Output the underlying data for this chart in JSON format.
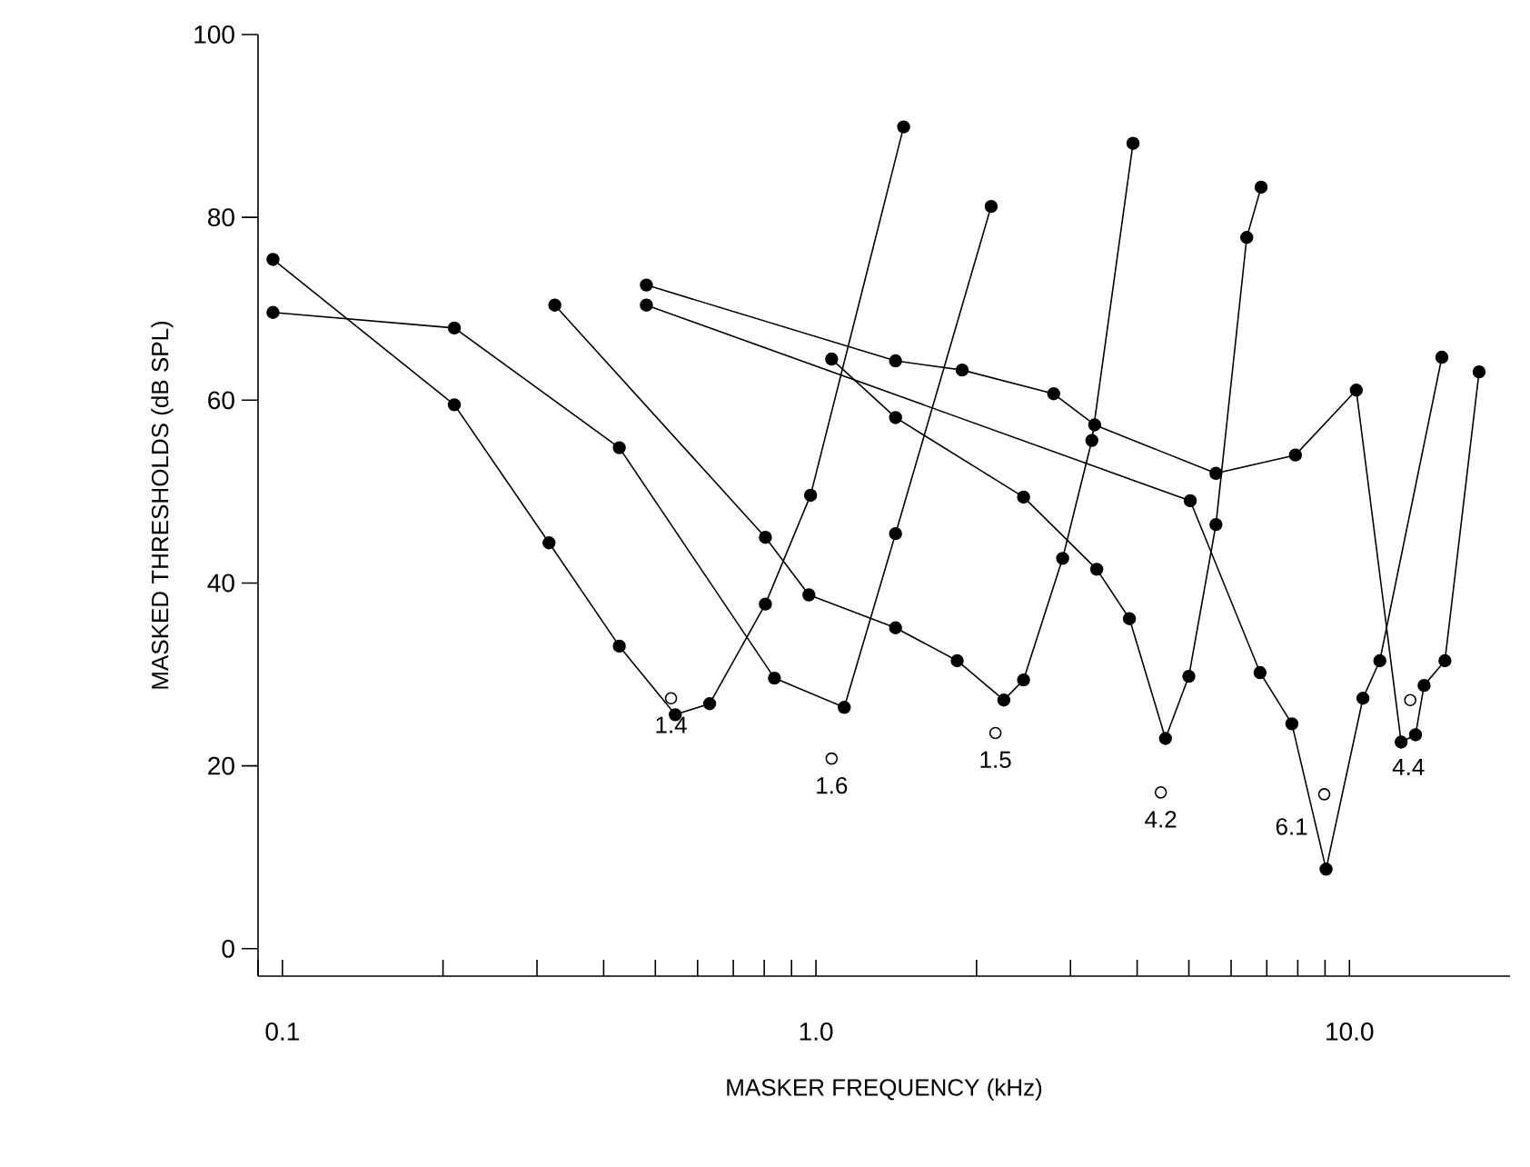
{
  "chart_data": {
    "type": "line",
    "xlabel": "MASKER FREQUENCY (kHz)",
    "ylabel": "MASKED THRESHOLDS (dB SPL)",
    "log": "x",
    "xlim": [
      0.09,
      20
    ],
    "ylim": [
      -3,
      100
    ],
    "xticks": [
      {
        "value": 0.09,
        "label": null
      },
      {
        "value": 0.1,
        "label": "0.1"
      },
      {
        "value": 0.2,
        "label": null
      },
      {
        "value": 0.3,
        "label": null
      },
      {
        "value": 0.4,
        "label": null
      },
      {
        "value": 0.5,
        "label": null
      },
      {
        "value": 0.6,
        "label": null
      },
      {
        "value": 0.7,
        "label": null
      },
      {
        "value": 0.8,
        "label": null
      },
      {
        "value": 0.9,
        "label": null
      },
      {
        "value": 1,
        "label": "1.0"
      },
      {
        "value": 2,
        "label": null
      },
      {
        "value": 3,
        "label": null
      },
      {
        "value": 4,
        "label": null
      },
      {
        "value": 5,
        "label": null
      },
      {
        "value": 6,
        "label": null
      },
      {
        "value": 7,
        "label": null
      },
      {
        "value": 8,
        "label": null
      },
      {
        "value": 9,
        "label": null
      },
      {
        "value": 10,
        "label": "10.0"
      }
    ],
    "yticks": [
      0,
      20,
      40,
      60,
      80,
      100
    ],
    "marker": "circle",
    "grid": false,
    "series": [
      {
        "color": "#000000",
        "x": [
          0.096,
          0.21,
          0.316,
          0.428,
          0.545,
          0.632,
          0.804,
          0.977,
          1.46
        ],
        "values": [
          75.4,
          59.5,
          44.4,
          33.1,
          25.6,
          26.8,
          37.7,
          49.6,
          89.9
        ]
      },
      {
        "color": "#000000",
        "x": [
          0.096,
          0.21,
          0.428,
          0.836,
          1.13,
          1.41,
          2.13
        ],
        "values": [
          69.6,
          67.9,
          54.8,
          29.6,
          26.4,
          45.4,
          81.2
        ]
      },
      {
        "color": "#000000",
        "x": [
          0.324,
          0.804,
          0.97,
          1.41,
          1.84,
          2.25,
          2.45,
          2.9,
          3.29,
          3.93
        ],
        "values": [
          70.4,
          45.0,
          38.7,
          35.1,
          31.5,
          27.2,
          29.4,
          42.7,
          55.6,
          88.1
        ]
      },
      {
        "color": "#000000",
        "x": [
          1.07,
          1.41,
          2.45,
          3.36,
          3.87,
          4.52,
          5.0,
          5.62,
          6.42,
          6.83
        ],
        "values": [
          64.5,
          58.1,
          49.4,
          41.5,
          36.1,
          23.0,
          29.8,
          46.4,
          77.8,
          83.3
        ]
      },
      {
        "color": "#000000",
        "x": [
          0.481,
          5.03,
          6.8,
          7.8,
          9.04,
          10.6,
          11.4,
          14.9
        ],
        "values": [
          70.4,
          49.0,
          30.2,
          24.6,
          8.7,
          27.4,
          31.5,
          64.7
        ]
      },
      {
        "color": "#000000",
        "x": [
          0.481,
          1.41,
          1.88,
          2.79,
          3.33,
          5.62,
          7.92,
          10.3,
          12.5,
          13.3,
          13.8,
          15.1,
          17.5
        ],
        "values": [
          72.6,
          64.3,
          63.3,
          60.7,
          57.3,
          52.0,
          54.0,
          61.1,
          22.6,
          23.4,
          28.8,
          31.5,
          63.1
        ]
      },
      {
        "type": "scatter",
        "color": "#000000",
        "x": [
          0.535,
          1.07,
          2.17,
          4.43,
          8.97,
          13.0
        ],
        "values": [
          27.4,
          20.8,
          23.6,
          17.1,
          16.9,
          27.2
        ]
      }
    ],
    "annotations": [
      {
        "text": "1.4",
        "x": 0.535,
        "y": 27.4
      },
      {
        "text": "1.6",
        "x": 1.07,
        "y": 20.8
      },
      {
        "text": "1.5",
        "x": 2.17,
        "y": 23.6
      },
      {
        "text": "4.2",
        "x": 4.43,
        "y": 17.1
      },
      {
        "text": "6.1",
        "x": 8.97,
        "y": 16.9
      },
      {
        "text": "4.4",
        "x": 12.5,
        "y": 22.6
      }
    ]
  }
}
